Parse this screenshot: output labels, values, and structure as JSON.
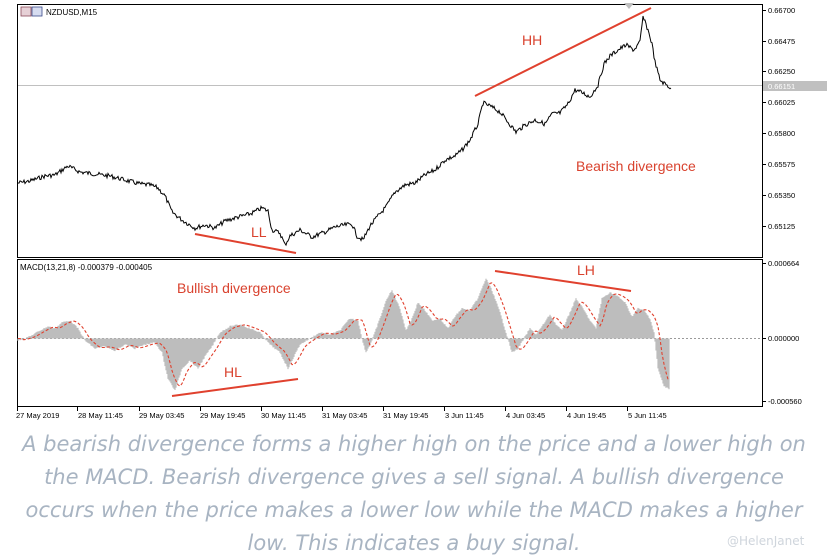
{
  "header": {
    "symbol": "NZDUSD,M15",
    "macd_label": "MACD(13,21,8) -0.000379 -0.000405"
  },
  "price_panel": {
    "current_price_tag": "0.66151",
    "axis_ticks": [
      "0.66700",
      "0.66475",
      "0.66250",
      "0.66025",
      "0.65800",
      "0.65575",
      "0.65350",
      "0.65125"
    ],
    "annotations": {
      "hh": "HH",
      "ll": "LL",
      "bearish": "Bearish divergence"
    }
  },
  "macd_panel": {
    "axis_ticks": [
      "0.000664",
      "0.000000",
      "-0.000560"
    ],
    "annotations": {
      "lh": "LH",
      "hl": "HL",
      "bullish": "Bullish divergence"
    }
  },
  "time_axis": [
    "27 May 2019",
    "28 May 11:45",
    "29 May 03:45",
    "29 May 19:45",
    "30 May 11:45",
    "31 May 03:45",
    "31 May 19:45",
    "3 Jun 11:45",
    "4 Jun 03:45",
    "4 Jun 19:45",
    "5 Jun 11:45"
  ],
  "caption": {
    "line1": "A bearish divergence forms a higher high on the price and a lower high on",
    "line2": "the MACD. Bearish divergence gives a sell signal. A bullish divergence",
    "line3": "occurs when the price makes a lower low while the MACD makes a higher",
    "line4": "low. This indicates a buy signal."
  },
  "watermark": "@HelenJanet",
  "colors": {
    "annotation_red": "#d9422e",
    "candles": "#000000",
    "histogram": "#bdbdbd",
    "signal": "#e0412e",
    "caption": "#a8b4c2"
  },
  "chart_data": {
    "type": "line",
    "symbol": "NZDUSD",
    "timeframe": "M15",
    "x": [
      "27 May 2019",
      "28 May 11:45",
      "29 May 03:45",
      "29 May 19:45",
      "30 May 11:45",
      "31 May 03:45",
      "31 May 19:45",
      "3 Jun 11:45",
      "4 Jun 03:45",
      "4 Jun 19:45",
      "5 Jun 11:45"
    ],
    "price_keypoints": [
      {
        "x": "27 May 2019",
        "y": 0.655
      },
      {
        "x": "28 May 11:45",
        "y": 0.6556
      },
      {
        "x": "29 May 03:45",
        "y": 0.6535
      },
      {
        "x": "29 May 19:45",
        "y": 0.6512
      },
      {
        "x": "30 May 11:45",
        "y": 0.6507
      },
      {
        "x": "31 May 03:45",
        "y": 0.6513
      },
      {
        "x": "31 May 19:45",
        "y": 0.6535
      },
      {
        "x": "3 Jun 11:45",
        "y": 0.6565
      },
      {
        "x": "4 Jun 03:45",
        "y": 0.659
      },
      {
        "x": "4 Jun 19:45",
        "y": 0.661
      },
      {
        "x": "5 Jun 11:45",
        "y": 0.6658
      }
    ],
    "price_ylim": [
      0.6505,
      0.667
    ],
    "macd": {
      "name": "MACD(13,21,8)",
      "main": -0.000379,
      "signal": -0.000405,
      "ylim": [
        -0.00056,
        0.000664
      ]
    }
  }
}
